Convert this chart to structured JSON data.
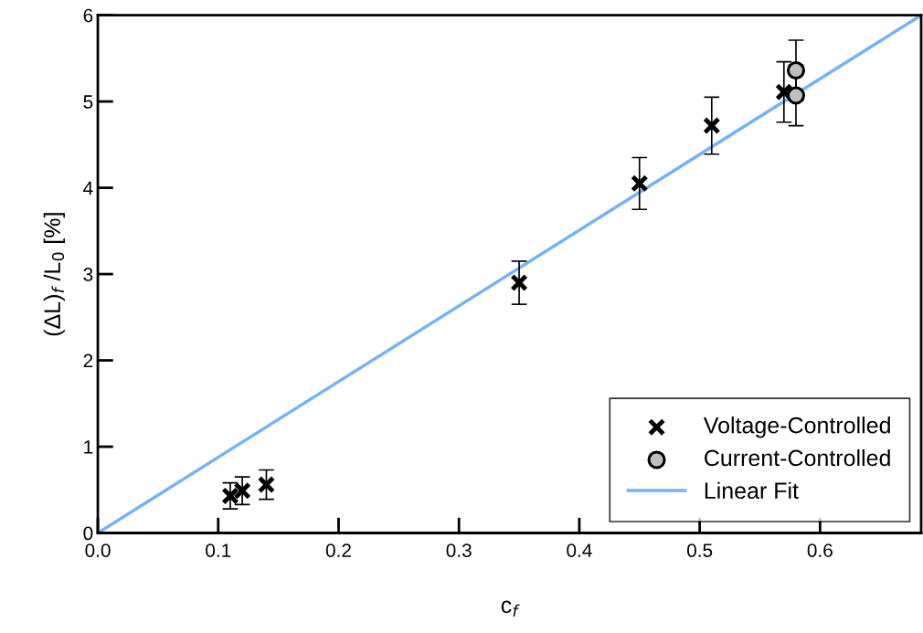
{
  "chart_data": {
    "type": "scatter",
    "xlabel": "c$_{f}$",
    "ylabel": "(ΔL)$_{f}$ /L$_{0}$ [%]",
    "xlim": [
      0,
      0.684
    ],
    "ylim": [
      0,
      6
    ],
    "xticks": [
      {
        "value": 0,
        "label": "0.0"
      },
      {
        "value": 0.1,
        "label": "0.1"
      },
      {
        "value": 0.2,
        "label": "0.2"
      },
      {
        "value": 0.3,
        "label": "0.3"
      },
      {
        "value": 0.4,
        "label": "0.4"
      },
      {
        "value": 0.5,
        "label": "0.5"
      },
      {
        "value": 0.6,
        "label": "0.6"
      }
    ],
    "yticks": [
      0,
      1,
      2,
      3,
      4,
      5,
      6
    ],
    "grid": false,
    "legend": "bottom right",
    "series": [
      {
        "name": "Voltage-Controlled",
        "marker": "cross",
        "color": "#000000",
        "x": [
          0.11,
          0.12,
          0.14,
          0.35,
          0.45,
          0.51,
          0.57
        ],
        "values": [
          0.43,
          0.49,
          0.56,
          2.9,
          4.05,
          4.72,
          5.11
        ],
        "errors": [
          0.15,
          0.16,
          0.17,
          0.25,
          0.3,
          0.33,
          0.35
        ]
      },
      {
        "name": "Current-Controlled",
        "marker": "circle",
        "color": "#c0c0c0",
        "x": [
          0.58,
          0.58
        ],
        "values": [
          5.36,
          5.07
        ],
        "errors": [
          0.35,
          0.35
        ]
      },
      {
        "name": "Linear Fit",
        "type": "line",
        "marker": "none",
        "color": "#74b4f4",
        "x": [
          0,
          0.684
        ],
        "values": [
          0,
          6
        ]
      }
    ]
  }
}
